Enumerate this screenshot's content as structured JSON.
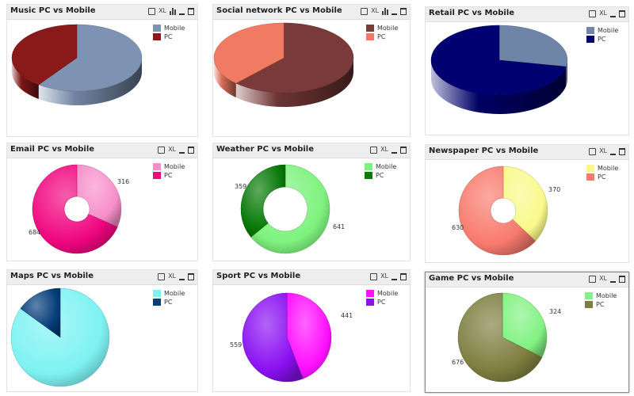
{
  "chart_data": [
    {
      "id": "music",
      "type": "pie",
      "style": "pie3d",
      "title": "Music PC vs Mobile",
      "categories": [
        "Mobile",
        "PC"
      ],
      "values": [
        60,
        40
      ],
      "data_labels": false,
      "colors": [
        "#7e93b4",
        "#8a1a1a"
      ],
      "legend": "top-right",
      "tools": [
        "print",
        "XL",
        "bars",
        "min",
        "max"
      ]
    },
    {
      "id": "social",
      "type": "pie",
      "style": "pie3d",
      "title": "Social network PC vs Mobile",
      "categories": [
        "Mobile",
        "PC"
      ],
      "values": [
        62,
        38
      ],
      "data_labels": false,
      "colors": [
        "#7a3a3a",
        "#f07a62"
      ],
      "legend": "top-right",
      "tools": [
        "print",
        "XL",
        "bars",
        "min",
        "max"
      ]
    },
    {
      "id": "retail",
      "type": "pie",
      "style": "pie3d",
      "title": "Retail PC vs Mobile",
      "categories": [
        "Mobile",
        "PC"
      ],
      "values": [
        28,
        72
      ],
      "data_labels": false,
      "colors": [
        "#6e85a8",
        "#000070"
      ],
      "legend": "top-right",
      "tools": [
        "print",
        "XL",
        "min",
        "max"
      ]
    },
    {
      "id": "email",
      "type": "pie",
      "style": "donut",
      "title": "Email PC vs Mobile",
      "categories": [
        "Mobile",
        "PC"
      ],
      "values": [
        316,
        684
      ],
      "data_labels": true,
      "colors": [
        "#f78fca",
        "#f0057f"
      ],
      "legend": "top-right",
      "tools": [
        "print",
        "XL",
        "min",
        "max"
      ]
    },
    {
      "id": "weather",
      "type": "pie",
      "style": "donut",
      "title": "Weather PC vs Mobile",
      "categories": [
        "Mobile",
        "PC"
      ],
      "values": [
        641,
        359
      ],
      "data_labels": true,
      "colors": [
        "#7ef27e",
        "#087a08"
      ],
      "legend": "top-right",
      "tools": [
        "print",
        "XL",
        "min",
        "max"
      ]
    },
    {
      "id": "newspaper",
      "type": "pie",
      "style": "donut",
      "title": "Newspaper PC vs Mobile",
      "categories": [
        "Mobile",
        "PC"
      ],
      "values": [
        370,
        630
      ],
      "data_labels": true,
      "colors": [
        "#f9f98a",
        "#f97a6e"
      ],
      "legend": "top-right",
      "tools": [
        "print",
        "XL",
        "min",
        "max"
      ]
    },
    {
      "id": "maps",
      "type": "pie",
      "style": "pie",
      "title": "Maps PC vs Mobile",
      "categories": [
        "Mobile",
        "PC"
      ],
      "values": [
        85,
        15
      ],
      "data_labels": false,
      "colors": [
        "#7ef2f2",
        "#063e7a"
      ],
      "legend": "top-right",
      "tools": [
        "print",
        "XL",
        "min",
        "max"
      ]
    },
    {
      "id": "sport",
      "type": "pie",
      "style": "pie",
      "title": "Sport PC vs Mobile",
      "categories": [
        "Mobile",
        "PC"
      ],
      "values": [
        441,
        559
      ],
      "data_labels": true,
      "colors": [
        "#ff10ff",
        "#8a10f2"
      ],
      "legend": "top-right",
      "tools": [
        "print",
        "XL",
        "min",
        "max"
      ]
    },
    {
      "id": "game",
      "type": "pie",
      "style": "pie",
      "title": "Game PC vs Mobile",
      "categories": [
        "Mobile",
        "PC"
      ],
      "values": [
        324,
        676
      ],
      "data_labels": true,
      "colors": [
        "#82f282",
        "#7e7e40"
      ],
      "legend": "top-right",
      "tools": [
        "print",
        "XL",
        "min",
        "max"
      ]
    }
  ]
}
